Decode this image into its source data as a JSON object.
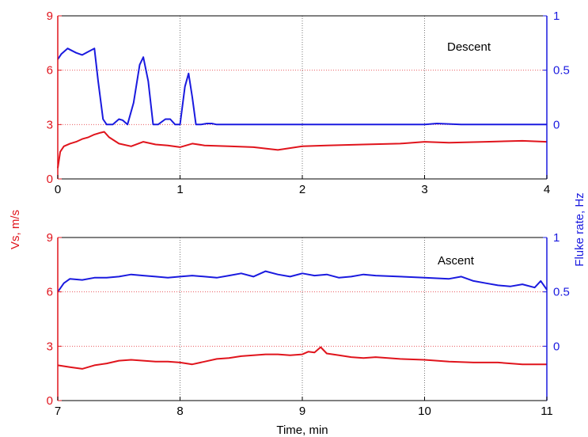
{
  "colors": {
    "speed": "#e0141c",
    "fluke": "#1a1adf",
    "frame": "#000000",
    "grid_dotted": "#777777",
    "grid_red": "#e0141c"
  },
  "labels": {
    "ylabel_left": "Vs, m/s",
    "ylabel_right": "Fluke rate, Hz",
    "xlabel": "Time, min"
  },
  "chart_data": [
    {
      "type": "line",
      "annotation": "Descent",
      "xlim": [
        0,
        4
      ],
      "xticks": [
        "0",
        "1",
        "2",
        "3",
        "4"
      ],
      "ylim_left": [
        0,
        9
      ],
      "yticks_left": [
        "0",
        "3",
        "6",
        "9"
      ],
      "ylim_right": [
        -0.5,
        1
      ],
      "yticks_right": [
        "0",
        "0.5",
        "1"
      ],
      "grid": "dotted",
      "series": [
        {
          "axis": "left",
          "color": "red",
          "x": [
            0,
            0.02,
            0.05,
            0.1,
            0.15,
            0.2,
            0.25,
            0.3,
            0.35,
            0.38,
            0.42,
            0.5,
            0.6,
            0.7,
            0.8,
            0.9,
            1.0,
            1.1,
            1.2,
            1.4,
            1.6,
            1.8,
            2.0,
            2.2,
            2.5,
            2.8,
            3.0,
            3.2,
            3.5,
            3.8,
            4.0
          ],
          "y": [
            0.6,
            1.5,
            1.8,
            1.95,
            2.05,
            2.2,
            2.3,
            2.45,
            2.55,
            2.6,
            2.3,
            1.95,
            1.8,
            2.05,
            1.9,
            1.85,
            1.75,
            1.95,
            1.85,
            1.8,
            1.75,
            1.6,
            1.8,
            1.85,
            1.9,
            1.95,
            2.05,
            2.0,
            2.05,
            2.1,
            2.05
          ]
        },
        {
          "axis": "right",
          "color": "blue",
          "x": [
            0,
            0.03,
            0.08,
            0.15,
            0.2,
            0.25,
            0.3,
            0.33,
            0.37,
            0.4,
            0.45,
            0.5,
            0.53,
            0.57,
            0.62,
            0.67,
            0.7,
            0.74,
            0.78,
            0.82,
            0.88,
            0.92,
            0.96,
            1.0,
            1.04,
            1.07,
            1.1,
            1.13,
            1.17,
            1.22,
            1.26,
            1.3,
            2.0,
            3.0,
            3.1,
            3.3,
            4.0
          ],
          "y": [
            0.6,
            0.65,
            0.7,
            0.66,
            0.64,
            0.67,
            0.7,
            0.4,
            0.05,
            0.0,
            0.0,
            0.05,
            0.04,
            0.0,
            0.2,
            0.55,
            0.62,
            0.4,
            0.0,
            0.0,
            0.05,
            0.05,
            0.0,
            0.0,
            0.35,
            0.47,
            0.25,
            0.0,
            0.0,
            0.01,
            0.01,
            0.0,
            0.0,
            0.0,
            0.01,
            0.0,
            0.0
          ]
        }
      ]
    },
    {
      "type": "line",
      "annotation": "Ascent",
      "xlim": [
        7,
        11
      ],
      "xticks": [
        "7",
        "8",
        "9",
        "10",
        "11"
      ],
      "ylim_left": [
        0,
        9
      ],
      "yticks_left": [
        "0",
        "3",
        "6",
        "9"
      ],
      "ylim_right": [
        -0.5,
        1
      ],
      "yticks_right": [
        "0",
        "0.5",
        "1"
      ],
      "grid": "dotted",
      "series": [
        {
          "axis": "left",
          "color": "red",
          "x": [
            7.0,
            7.1,
            7.2,
            7.3,
            7.4,
            7.5,
            7.6,
            7.7,
            7.8,
            7.9,
            8.0,
            8.1,
            8.2,
            8.3,
            8.4,
            8.5,
            8.6,
            8.7,
            8.8,
            8.9,
            9.0,
            9.05,
            9.1,
            9.15,
            9.2,
            9.3,
            9.4,
            9.5,
            9.6,
            9.8,
            10.0,
            10.2,
            10.4,
            10.6,
            10.8,
            11.0
          ],
          "y": [
            1.95,
            1.85,
            1.75,
            1.95,
            2.05,
            2.2,
            2.25,
            2.2,
            2.15,
            2.15,
            2.1,
            2.0,
            2.15,
            2.3,
            2.35,
            2.45,
            2.5,
            2.55,
            2.55,
            2.5,
            2.55,
            2.7,
            2.65,
            2.95,
            2.6,
            2.5,
            2.4,
            2.35,
            2.4,
            2.3,
            2.25,
            2.15,
            2.1,
            2.1,
            2.0,
            2.0
          ]
        },
        {
          "axis": "right",
          "color": "blue",
          "x": [
            7.0,
            7.05,
            7.1,
            7.2,
            7.3,
            7.4,
            7.5,
            7.6,
            7.7,
            7.8,
            7.9,
            8.0,
            8.1,
            8.2,
            8.3,
            8.4,
            8.5,
            8.6,
            8.7,
            8.8,
            8.9,
            9.0,
            9.1,
            9.2,
            9.3,
            9.4,
            9.5,
            9.6,
            9.8,
            10.0,
            10.2,
            10.3,
            10.4,
            10.5,
            10.6,
            10.7,
            10.8,
            10.9,
            10.95,
            11.0
          ],
          "y": [
            0.5,
            0.58,
            0.62,
            0.61,
            0.63,
            0.63,
            0.64,
            0.66,
            0.65,
            0.64,
            0.63,
            0.64,
            0.65,
            0.64,
            0.63,
            0.65,
            0.67,
            0.64,
            0.69,
            0.66,
            0.64,
            0.67,
            0.65,
            0.66,
            0.63,
            0.64,
            0.66,
            0.65,
            0.64,
            0.63,
            0.62,
            0.64,
            0.6,
            0.58,
            0.56,
            0.55,
            0.57,
            0.54,
            0.6,
            0.52
          ]
        }
      ]
    }
  ]
}
